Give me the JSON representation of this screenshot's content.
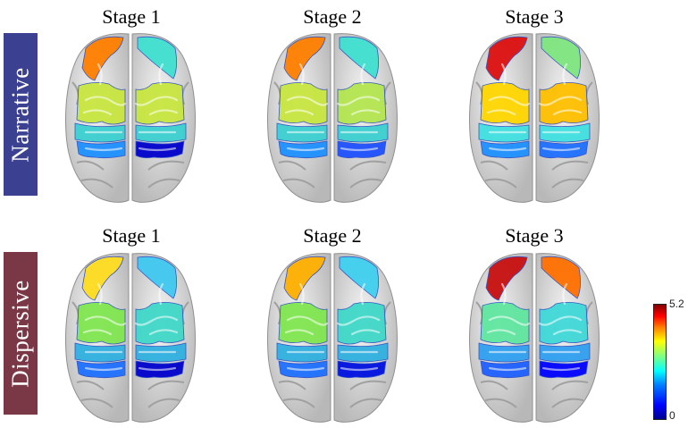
{
  "rows": [
    {
      "label": "Narrative",
      "label_color": "#3b4190",
      "stages": [
        "Stage 1",
        "Stage 2",
        "Stage 3"
      ]
    },
    {
      "label": "Dispersive",
      "label_color": "#7a3746",
      "stages": [
        "Stage 1",
        "Stage 2",
        "Stage 3"
      ]
    }
  ],
  "colorbar": {
    "max_label": "5.2",
    "min_label": "0",
    "colors": [
      "#00008f",
      "#0000ff",
      "#00ffff",
      "#ffff00",
      "#ff0000",
      "#800000"
    ]
  },
  "brains": [
    {
      "row": 0,
      "stage": 0,
      "frontal_left": "#ff7f00",
      "frontal_right": "#40e0d0",
      "mid_left": "#c8e640",
      "mid_right": "#c8e640",
      "central": "#3cd0d0",
      "rear_left": "#1e90ff",
      "rear_right": "#0000cd"
    },
    {
      "row": 0,
      "stage": 1,
      "frontal_left": "#ff7f00",
      "frontal_right": "#40e0d0",
      "mid_left": "#c8e640",
      "mid_right": "#b4e650",
      "central": "#3cd0d0",
      "rear_left": "#1e90ff",
      "rear_right": "#1e50ff"
    },
    {
      "row": 0,
      "stage": 2,
      "frontal_left": "#dd1010",
      "frontal_right": "#80e680",
      "mid_left": "#ffd700",
      "mid_right": "#ffc000",
      "central": "#40e0e0",
      "rear_left": "#1e90ff",
      "rear_right": "#1e70ff"
    },
    {
      "row": 1,
      "stage": 0,
      "frontal_left": "#ffdd20",
      "frontal_right": "#40c8f0",
      "mid_left": "#80e650",
      "mid_right": "#40d8c8",
      "central": "#30b0e0",
      "rear_left": "#1e70ff",
      "rear_right": "#0000cd"
    },
    {
      "row": 1,
      "stage": 1,
      "frontal_left": "#ffb000",
      "frontal_right": "#40d0f0",
      "mid_left": "#80e650",
      "mid_right": "#40d8c8",
      "central": "#30b0e0",
      "rear_left": "#1e70ff",
      "rear_right": "#0010e0"
    },
    {
      "row": 1,
      "stage": 2,
      "frontal_left": "#c81010",
      "frontal_right": "#ff7000",
      "mid_left": "#60e6a0",
      "mid_right": "#40d8d8",
      "central": "#30a0f0",
      "rear_left": "#1e60ff",
      "rear_right": "#0000ff"
    }
  ]
}
